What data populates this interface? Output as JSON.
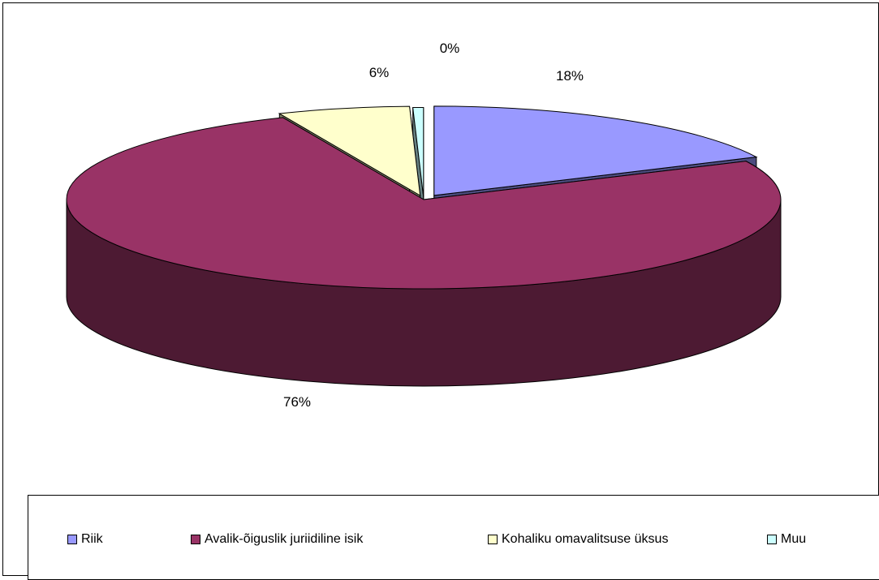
{
  "chart_data": {
    "type": "pie",
    "title": "",
    "labels": [
      "Riik",
      "Avalik-õiguslik juriidiline isik",
      "Kohaliku omavalitsuse üksus",
      "Muu"
    ],
    "values": [
      18,
      76,
      6,
      0
    ],
    "data_labels": [
      "18%",
      "76%",
      "6%",
      "0%"
    ],
    "colors": [
      "#9999ff",
      "#993366",
      "#ffffcc",
      "#ccffff"
    ],
    "side_colors": [
      "#4d4d80",
      "#4d1a33",
      "#808066",
      "#668080"
    ],
    "legend_position": "bottom",
    "exploded": true,
    "three_d": true
  }
}
